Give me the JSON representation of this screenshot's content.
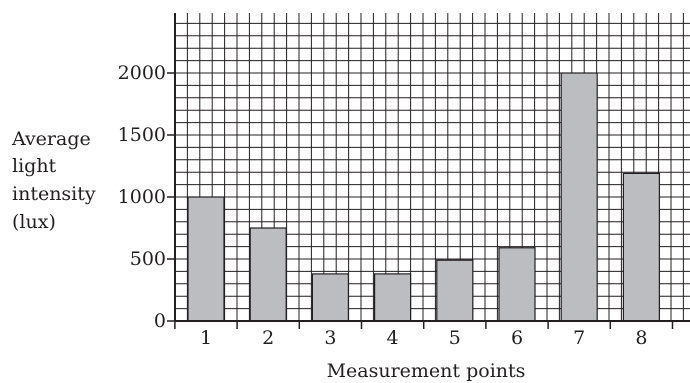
{
  "chart_data": {
    "type": "bar",
    "categories": [
      "1",
      "2",
      "3",
      "4",
      "5",
      "6",
      "7",
      "8"
    ],
    "values": [
      1000,
      750,
      380,
      380,
      490,
      590,
      2000,
      1190
    ],
    "xlabel": "Measurement points",
    "ylabel_lines": [
      "Average",
      "light",
      "intensity",
      "(lux)"
    ],
    "y_ticks": [
      0,
      500,
      1000,
      1500,
      2000
    ],
    "ylim": [
      0,
      2500
    ],
    "grid": true,
    "bar_color": "#bcbdc0",
    "line_color": "#231f20"
  }
}
